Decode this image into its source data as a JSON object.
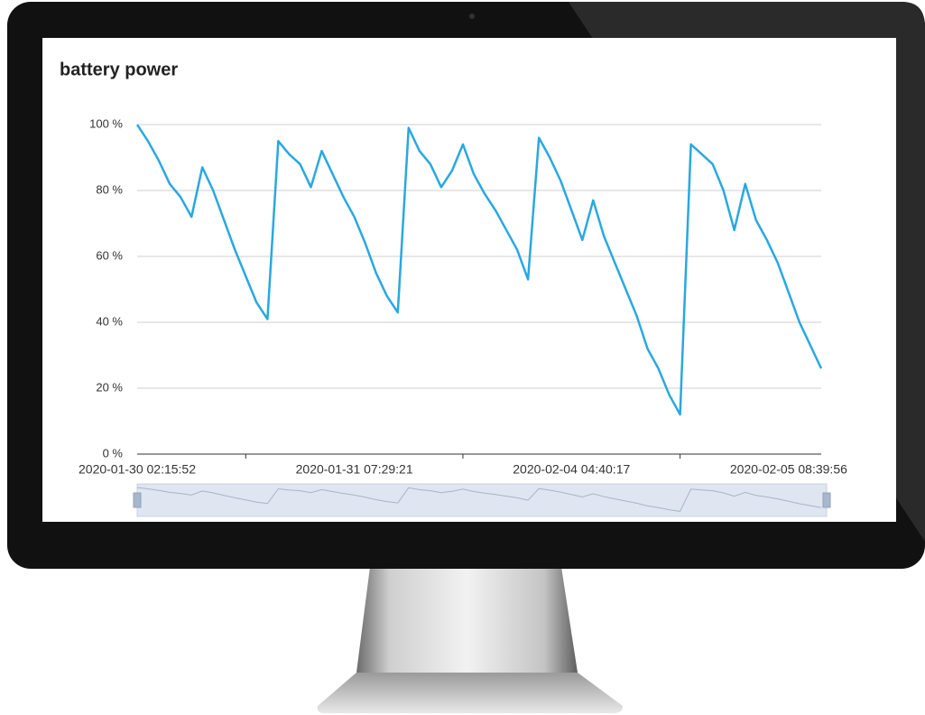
{
  "chart_data": {
    "type": "line",
    "title": "battery power",
    "categories": [
      "2020-01-30 02:15:52",
      null,
      null,
      null,
      null,
      null,
      null,
      null,
      null,
      null,
      null,
      null,
      null,
      null,
      null,
      null,
      null,
      null,
      null,
      null,
      "2020-01-31 07:29:21",
      null,
      null,
      null,
      null,
      null,
      null,
      null,
      null,
      null,
      null,
      null,
      null,
      null,
      null,
      null,
      null,
      null,
      null,
      null,
      "2020-02-04 04:40:17",
      null,
      null,
      null,
      null,
      null,
      null,
      null,
      null,
      null,
      null,
      null,
      null,
      null,
      null,
      null,
      null,
      null,
      null,
      null,
      "2020-02-05 08:39:56",
      null,
      null,
      null
    ],
    "series": [
      {
        "name": "battery power",
        "color": "#29a8e0",
        "values": [
          100,
          95,
          89,
          82,
          78,
          72,
          87,
          80,
          71,
          62,
          54,
          46,
          41,
          95,
          91,
          88,
          81,
          92,
          85,
          78,
          72,
          64,
          55,
          48,
          43,
          99,
          92,
          88,
          81,
          86,
          94,
          85,
          79,
          74,
          68,
          62,
          53,
          96,
          90,
          83,
          74,
          65,
          77,
          66,
          58,
          50,
          42,
          32,
          26,
          18,
          12,
          94,
          91,
          88,
          80,
          68,
          82,
          71,
          65,
          58,
          49,
          40,
          33,
          26
        ]
      }
    ],
    "ylim": [
      0,
      100
    ],
    "yticks": [
      {
        "value": 0,
        "label": "0 %"
      },
      {
        "value": 20,
        "label": "20 %"
      },
      {
        "value": 40,
        "label": "40 %"
      },
      {
        "value": 60,
        "label": "60 %"
      },
      {
        "value": 80,
        "label": "80 %"
      },
      {
        "value": 100,
        "label": "100 %"
      }
    ],
    "grid": true
  }
}
